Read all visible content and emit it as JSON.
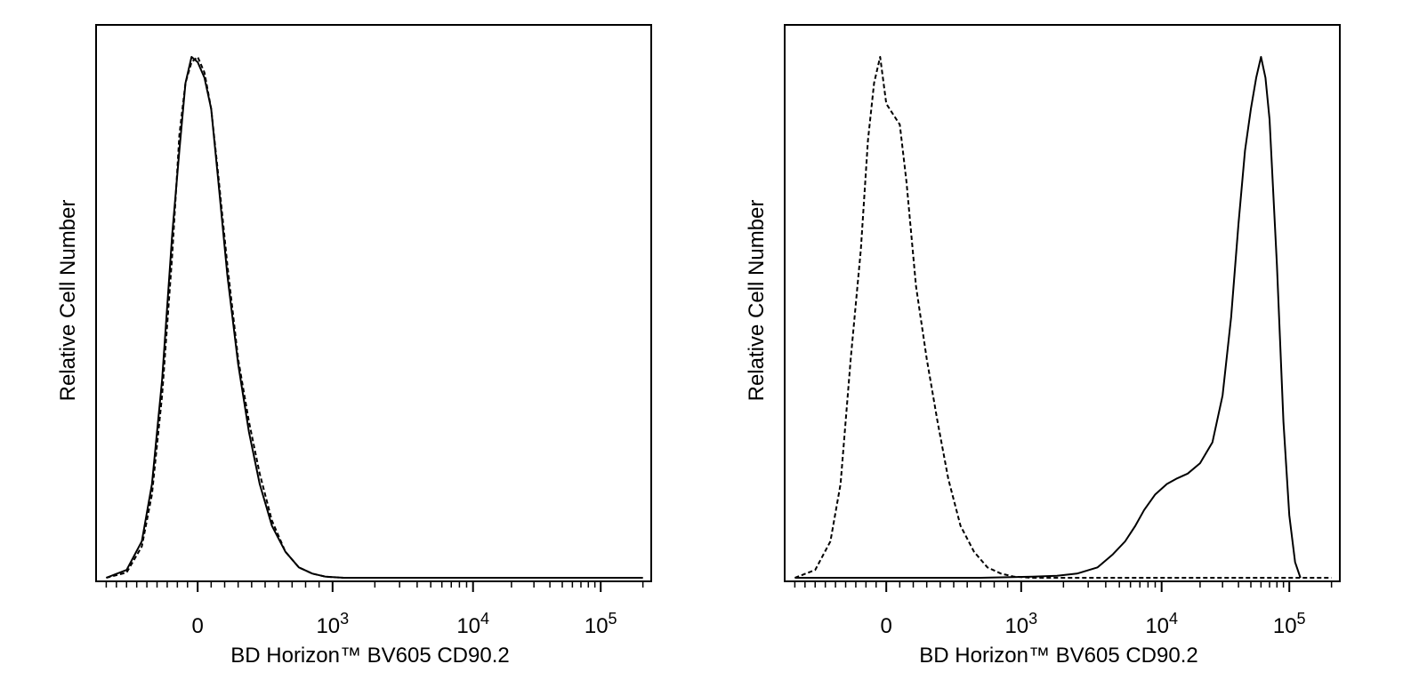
{
  "chart_data": [
    {
      "type": "line",
      "title": "",
      "xlabel": "BD Horizon™ BV605 CD90.2",
      "ylabel": "Relative Cell Number",
      "x_scale": "biexponential",
      "xlim": [
        -1000,
        200000
      ],
      "ylim": [
        0,
        1.0
      ],
      "grid": false,
      "legend": "none",
      "x_ticks": [
        {
          "value": 0,
          "base": "0",
          "exp": ""
        },
        {
          "value": 1000,
          "base": "10",
          "exp": "3"
        },
        {
          "value": 10000,
          "base": "10",
          "exp": "4"
        },
        {
          "value": 100000,
          "base": "10",
          "exp": "5"
        }
      ],
      "series": [
        {
          "style": "dashed",
          "x": [
            -900,
            -700,
            -550,
            -450,
            -350,
            -250,
            -180,
            -120,
            -60,
            0,
            50,
            100,
            150,
            220,
            300,
            380,
            460,
            550,
            650,
            750,
            850,
            950,
            1200,
            3000,
            10000,
            100000,
            200000
          ],
          "y": [
            0,
            0.01,
            0.06,
            0.16,
            0.35,
            0.62,
            0.85,
            0.95,
            0.99,
            1.0,
            0.97,
            0.9,
            0.78,
            0.6,
            0.42,
            0.3,
            0.2,
            0.11,
            0.05,
            0.02,
            0.008,
            0.002,
            0,
            0,
            0,
            0,
            0
          ]
        },
        {
          "style": "solid",
          "x": [
            -900,
            -700,
            -550,
            -450,
            -350,
            -250,
            -180,
            -120,
            -60,
            0,
            50,
            100,
            150,
            220,
            300,
            380,
            460,
            550,
            650,
            750,
            850,
            950,
            1200,
            3000,
            10000,
            100000,
            200000
          ],
          "y": [
            0,
            0.015,
            0.07,
            0.18,
            0.38,
            0.66,
            0.82,
            0.95,
            1.0,
            0.99,
            0.96,
            0.9,
            0.77,
            0.58,
            0.41,
            0.28,
            0.18,
            0.1,
            0.05,
            0.02,
            0.008,
            0.002,
            0,
            0,
            0,
            0,
            0
          ]
        }
      ]
    },
    {
      "type": "line",
      "title": "",
      "xlabel": "BD Horizon™ BV605 CD90.2",
      "ylabel": "Relative Cell Number",
      "x_scale": "biexponential",
      "xlim": [
        -1000,
        200000
      ],
      "ylim": [
        0,
        1.0
      ],
      "grid": false,
      "legend": "none",
      "x_ticks": [
        {
          "value": 0,
          "base": "0",
          "exp": ""
        },
        {
          "value": 1000,
          "base": "10",
          "exp": "3"
        },
        {
          "value": 10000,
          "base": "10",
          "exp": "4"
        },
        {
          "value": 100000,
          "base": "10",
          "exp": "5"
        }
      ],
      "series": [
        {
          "style": "dashed",
          "x": [
            -900,
            -700,
            -550,
            -450,
            -350,
            -250,
            -180,
            -120,
            -60,
            0,
            50,
            100,
            150,
            220,
            300,
            380,
            460,
            550,
            650,
            750,
            850,
            950,
            1200,
            3000,
            10000,
            100000,
            200000
          ],
          "y": [
            0,
            0.015,
            0.07,
            0.18,
            0.42,
            0.63,
            0.84,
            0.95,
            1.0,
            0.91,
            0.89,
            0.87,
            0.76,
            0.56,
            0.42,
            0.3,
            0.19,
            0.1,
            0.05,
            0.02,
            0.008,
            0.002,
            0,
            0,
            0,
            0,
            0
          ]
        },
        {
          "style": "solid",
          "x": [
            -900,
            0,
            700,
            1200,
            1800,
            2500,
            3500,
            4500,
            5500,
            6500,
            7500,
            9000,
            11000,
            13000,
            16000,
            20000,
            25000,
            30000,
            35000,
            40000,
            45000,
            50000,
            55000,
            60000,
            65000,
            70000,
            80000,
            90000,
            100000,
            110000,
            120000
          ],
          "y": [
            0,
            0,
            0,
            0.002,
            0.004,
            0.008,
            0.02,
            0.045,
            0.07,
            0.1,
            0.13,
            0.16,
            0.18,
            0.19,
            0.2,
            0.22,
            0.26,
            0.35,
            0.5,
            0.68,
            0.82,
            0.9,
            0.96,
            1.0,
            0.96,
            0.88,
            0.6,
            0.3,
            0.12,
            0.03,
            0
          ]
        }
      ]
    }
  ]
}
